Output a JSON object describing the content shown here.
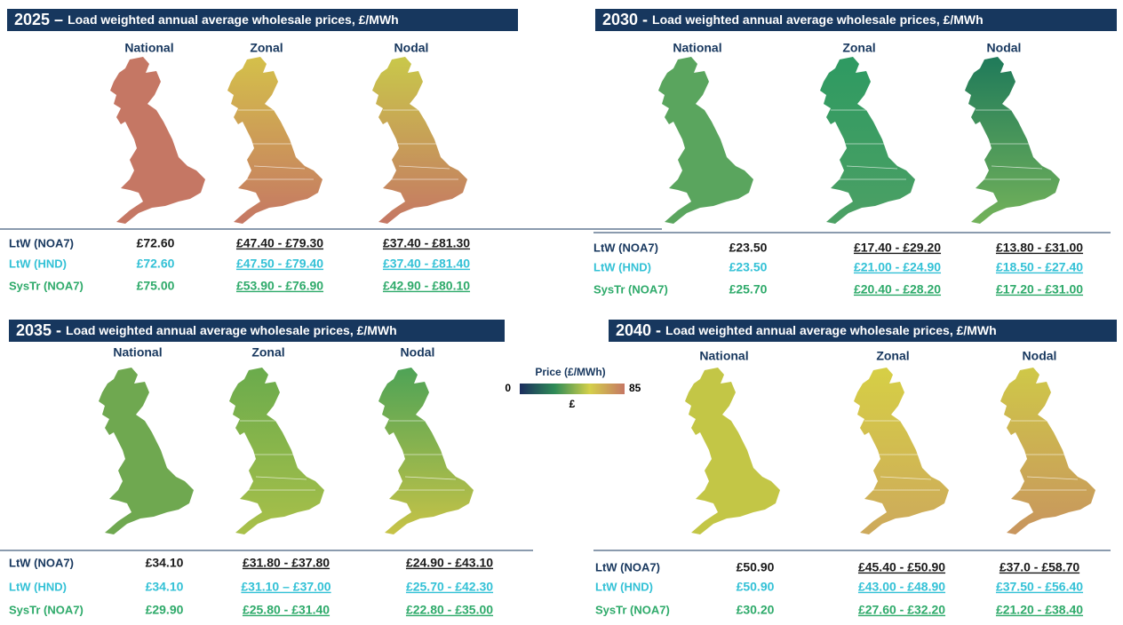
{
  "panels": [
    {
      "year": "2025 –",
      "title": "Load weighted annual average wholesale prices, £/MWh",
      "columns": [
        "National",
        "Zonal",
        "Nodal"
      ],
      "map_colors": [
        [
          "#c57764",
          "#c57764"
        ],
        [
          "#d4c04a",
          "#c57764"
        ],
        [
          "#c9c84a",
          "#c57764"
        ]
      ],
      "rows": [
        {
          "label": "LtW (NOA7)",
          "values": [
            "£72.60",
            "£47.40 - £79.30",
            "£37.40 - £81.30"
          ]
        },
        {
          "label": "LtW (HND)",
          "values": [
            "£72.60",
            "£47.50 - £79.40",
            "£37.40 - £81.40"
          ]
        },
        {
          "label": "SysTr (NOA7)",
          "values": [
            "£75.00",
            "£53.90 - £76.90",
            "£42.90 - £80.10"
          ]
        }
      ]
    },
    {
      "year": "2030 -",
      "title": "Load weighted annual average wholesale prices, £/MWh",
      "columns": [
        "National",
        "Zonal",
        "Nodal"
      ],
      "map_colors": [
        [
          "#5aa55e",
          "#5aa55e"
        ],
        [
          "#2e9a62",
          "#4ca064"
        ],
        [
          "#1f7a5a",
          "#73b25a"
        ]
      ],
      "rows": [
        {
          "label": "LtW (NOA7)",
          "values": [
            "£23.50",
            "£17.40 - £29.20",
            "£13.80 - £31.00"
          ]
        },
        {
          "label": "LtW (HND)",
          "values": [
            "£23.50",
            "£21.00 - £24.90",
            "£18.50 - £27.40"
          ]
        },
        {
          "label": "SysTr (NOA7)",
          "values": [
            "£25.70",
            "£20.40 - £28.20",
            "£17.20 - £31.00"
          ]
        }
      ]
    },
    {
      "year": "2035 -",
      "title": "Load weighted annual average wholesale prices, £/MWh",
      "columns": [
        "National",
        "Zonal",
        "Nodal"
      ],
      "map_colors": [
        [
          "#6fa850",
          "#6fa850"
        ],
        [
          "#6aab4c",
          "#a9c04a"
        ],
        [
          "#4ea356",
          "#c7c347"
        ]
      ],
      "rows": [
        {
          "label": "LtW (NOA7)",
          "values": [
            "£34.10",
            "£31.80 - £37.80",
            "£24.90 - £43.10"
          ]
        },
        {
          "label": "LtW (HND)",
          "values": [
            "£34.10",
            "£31.10 – £37.00",
            "£25.70 - £42.30"
          ]
        },
        {
          "label": "SysTr (NOA7)",
          "values": [
            "£29.90",
            "£25.80 - £31.40",
            "£22.80 - £35.00"
          ]
        }
      ]
    },
    {
      "year": "2040 -",
      "title": "Load weighted annual average wholesale prices, £/MWh",
      "columns": [
        "National",
        "Zonal",
        "Nodal"
      ],
      "map_colors": [
        [
          "#c3c646",
          "#c3c646"
        ],
        [
          "#d6cf45",
          "#cda95c"
        ],
        [
          "#cfc848",
          "#c8955e"
        ]
      ],
      "rows": [
        {
          "label": "LtW (NOA7)",
          "values": [
            "£50.90",
            "£45.40 - £50.90",
            "£37.0 - £58.70"
          ]
        },
        {
          "label": "LtW (HND)",
          "values": [
            "£50.90",
            "£43.00 - £48.90",
            "£37.50 - £56.40"
          ]
        },
        {
          "label": "SysTr (NOA7)",
          "values": [
            "£30.20",
            "£27.60 - £32.20",
            "£21.20 - £38.40"
          ]
        }
      ]
    }
  ],
  "legend": {
    "title": "Price (£/MWh)",
    "min": "0",
    "max": "85",
    "unit": "£",
    "colors": [
      "#1b2d5e",
      "#2e8b57",
      "#d4d04a",
      "#c57764"
    ]
  }
}
